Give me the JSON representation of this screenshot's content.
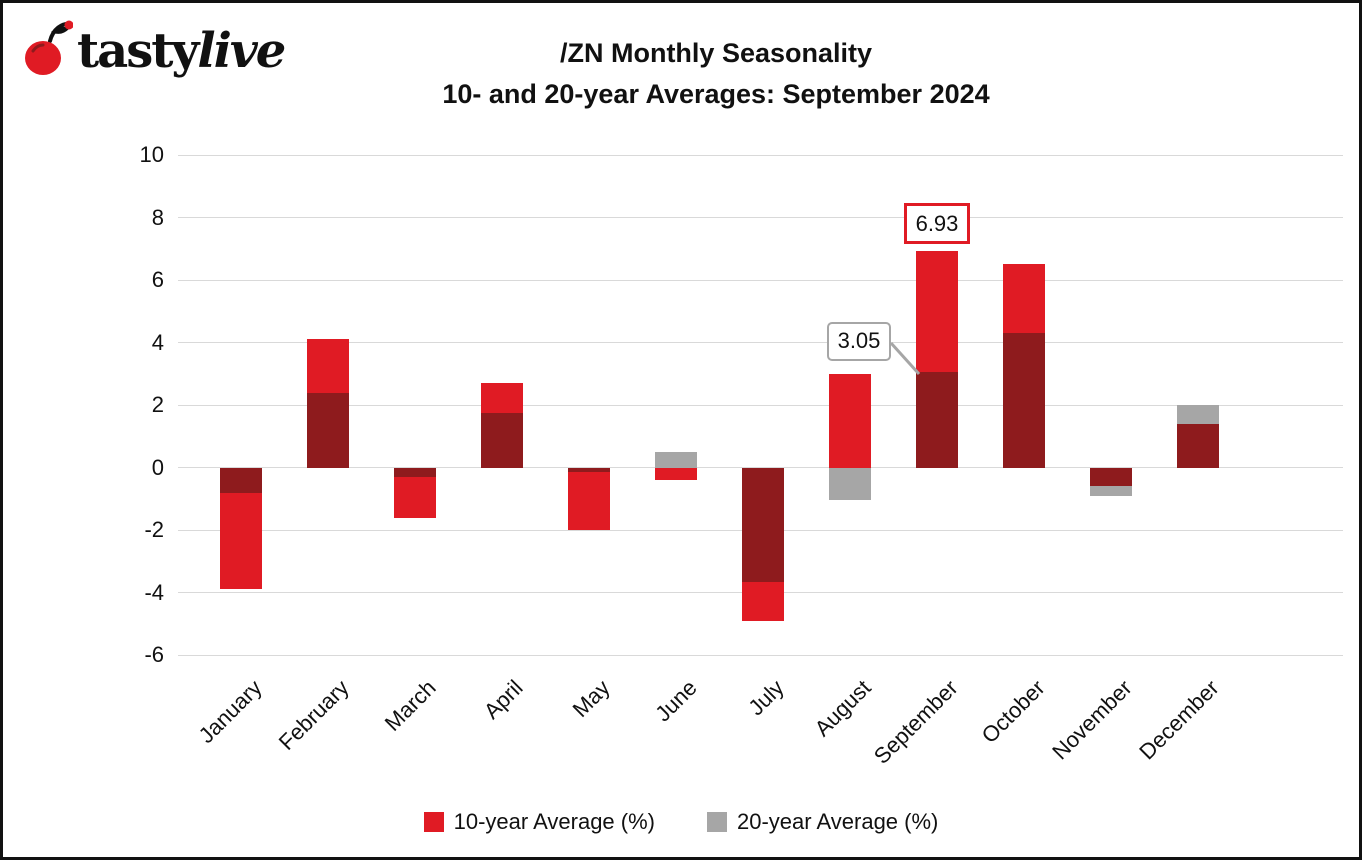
{
  "logo": {
    "brand_bold": "tasty",
    "brand_italic": "live"
  },
  "header": {
    "title_line1": "/ZN Monthly Seasonality",
    "title_line2": "10- and 20-year Averages: September 2024"
  },
  "chart_data": {
    "type": "bar",
    "title": "/ZN Monthly Seasonality 10- and 20-year Averages: September 2024",
    "categories": [
      "January",
      "February",
      "March",
      "April",
      "May",
      "June",
      "July",
      "August",
      "September",
      "October",
      "November",
      "December"
    ],
    "series": [
      {
        "name": "10-year Average (%)",
        "color": "#e01b24",
        "values": [
          -3.9,
          4.1,
          -1.6,
          2.7,
          -2.0,
          -0.4,
          -4.9,
          3.0,
          6.93,
          6.5,
          -0.6,
          1.4
        ]
      },
      {
        "name": "20-year Average (%)",
        "color": "#a6a6a6",
        "values": [
          -0.8,
          2.4,
          -0.3,
          1.75,
          -0.15,
          0.5,
          -3.65,
          -1.05,
          3.05,
          4.3,
          -0.9,
          2.0
        ]
      }
    ],
    "overlap_color": "#8e1b1d",
    "ylim": [
      -6,
      10
    ],
    "yticks": [
      10,
      8,
      6,
      4,
      2,
      0,
      -2,
      -4,
      -6
    ],
    "grid": true,
    "legend_position": "bottom",
    "annotations": [
      {
        "text": "6.93",
        "style": "red-box",
        "month": "September",
        "series": "10-year Average (%)"
      },
      {
        "text": "3.05",
        "style": "gray-box",
        "month": "September",
        "series": "20-year Average (%)"
      }
    ]
  }
}
